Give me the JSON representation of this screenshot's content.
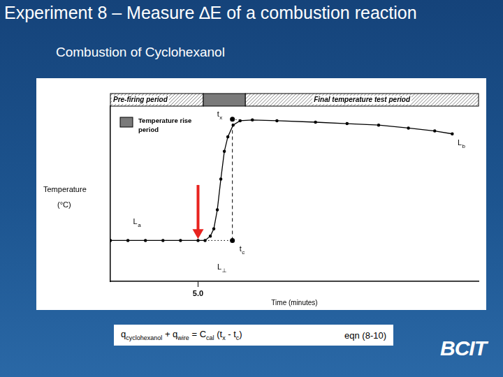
{
  "title": "Experiment 8 – Measure ∆E of a combustion reaction",
  "subtitle": "Combustion of Cyclohexanol",
  "equation": {
    "parts": [
      {
        "text": "q"
      },
      {
        "sub": "cyclohexanol"
      },
      {
        "text": " + q"
      },
      {
        "sub": "wire"
      },
      {
        "text": " = C"
      },
      {
        "sub": "cal"
      },
      {
        "text": " (t"
      },
      {
        "sub": "x"
      },
      {
        "text": " - t"
      },
      {
        "sub": "c"
      },
      {
        "text": ")"
      }
    ],
    "label": "eqn (8-10)"
  },
  "logo": "BCIT",
  "chart_data": {
    "type": "line",
    "x_label": "Time (minutes)",
    "y_label": [
      "Temperature",
      "(°C)"
    ],
    "xlim": [
      0,
      21
    ],
    "ylim": [
      0,
      12
    ],
    "xticks": [
      {
        "value": 5,
        "label": "5.0"
      }
    ],
    "tick_labels": "x",
    "grid": false,
    "legend": "upper left",
    "periods": [
      {
        "label": "Pre-firing period",
        "start": 0,
        "end": 5.3
      },
      {
        "label": "Temperature rise period",
        "start": 5.3,
        "end": 7.7,
        "color": "#7a7a7a"
      },
      {
        "label": "Final temperature test period",
        "start": 7.7,
        "end": 21
      }
    ],
    "series": [
      {
        "x": [
          0,
          1,
          2,
          3,
          4,
          5,
          5.4,
          5.7,
          5.9,
          6.1,
          6.3,
          6.5,
          6.7,
          7.0,
          7.4,
          8.1,
          9.5,
          11.7,
          13.5,
          15.3,
          17,
          18.5,
          19.5
        ],
        "values": [
          2.8,
          2.8,
          2.8,
          2.8,
          2.8,
          2.8,
          2.8,
          3.1,
          3.6,
          4.9,
          7.0,
          8.9,
          9.9,
          10.7,
          11.0,
          11.05,
          11.0,
          10.9,
          10.8,
          10.7,
          10.5,
          10.3,
          10.1
        ],
        "color": "#000000",
        "line_style": "solid",
        "marker": "dot"
      },
      {
        "x": [
          6.96,
          6.96
        ],
        "values": [
          2.8,
          11.1
        ],
        "color": "#000000",
        "line_style": "dashed",
        "marker": "none"
      },
      {
        "x": [
          5.4,
          6.96
        ],
        "values": [
          2.8,
          2.8
        ],
        "color": "#000000",
        "line_style": "dotted",
        "marker": "none"
      },
      {
        "x": [
          6.96,
          7.4
        ],
        "values": [
          11.1,
          11.05
        ],
        "color": "#000000",
        "line_style": "dotted",
        "marker": "none"
      }
    ],
    "points": [
      {
        "label": "t",
        "sub": "x",
        "x": 6.96,
        "y": 11.1
      },
      {
        "label": "t",
        "sub": "c",
        "x": 6.96,
        "y": 2.8
      }
    ],
    "labels": [
      {
        "label": "L",
        "sub": "a",
        "x": 1.3,
        "y": 3.9
      },
      {
        "label": "L",
        "sub": "b",
        "x": 19.8,
        "y": 9.3
      },
      {
        "label": "L",
        "sub": "⊥",
        "x": 6.1,
        "y": 0.8
      }
    ],
    "arrow": {
      "x": 5,
      "y_from": 6.6,
      "y_to": 2.9,
      "color": "#e8231f"
    }
  }
}
